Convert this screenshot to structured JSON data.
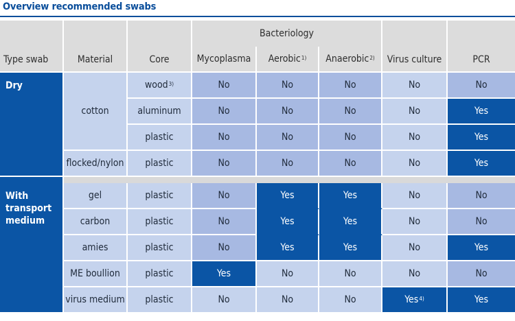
{
  "title": "Overview recommended swabs",
  "header": {
    "type_swab": "Type swab",
    "material": "Material",
    "core": "Core",
    "bacteriology": "Bacteriology",
    "mycoplasma": "Mycoplasma",
    "aerobic": "Aerobic",
    "aerobic_note": "1)",
    "anaerobic": "Anaerobic",
    "anaerobic_note": "2)",
    "virus_culture": "Virus culture",
    "pcr": "PCR"
  },
  "groups": {
    "dry": "Dry",
    "transport": "With transport medium"
  },
  "dry": {
    "material_cotton": "cotton",
    "material_flocked": "flocked/nylon",
    "rows": [
      {
        "core": "wood",
        "core_note": "3)",
        "mycoplasma": "No",
        "aerobic": "No",
        "anaerobic": "No",
        "virus": "No",
        "pcr": "No"
      },
      {
        "core": "aluminum",
        "mycoplasma": "No",
        "aerobic": "No",
        "anaerobic": "No",
        "virus": "No",
        "pcr": "Yes"
      },
      {
        "core": "plastic",
        "mycoplasma": "No",
        "aerobic": "No",
        "anaerobic": "No",
        "virus": "No",
        "pcr": "Yes"
      },
      {
        "core": "plastic",
        "mycoplasma": "No",
        "aerobic": "No",
        "anaerobic": "No",
        "virus": "No",
        "pcr": "Yes"
      }
    ]
  },
  "transport": {
    "rows": [
      {
        "material": "gel",
        "core": "plastic",
        "mycoplasma": "No",
        "aerobic": "Yes",
        "anaerobic": "Yes",
        "virus": "No",
        "pcr": "No"
      },
      {
        "material": "carbon",
        "core": "plastic",
        "mycoplasma": "No",
        "aerobic": "Yes",
        "anaerobic": "Yes",
        "virus": "No",
        "pcr": "No"
      },
      {
        "material": "amies",
        "core": "plastic",
        "mycoplasma": "No",
        "aerobic": "Yes",
        "anaerobic": "Yes",
        "virus": "No",
        "pcr": "Yes"
      },
      {
        "material": "ME boullion",
        "core": "plastic",
        "mycoplasma": "Yes",
        "aerobic": "No",
        "anaerobic": "No",
        "virus": "No",
        "pcr": "No"
      },
      {
        "material": "virus medium",
        "core": "plastic",
        "mycoplasma": "No",
        "aerobic": "No",
        "anaerobic": "No",
        "virus": "Yes",
        "virus_note": "4)",
        "pcr": "Yes"
      }
    ]
  },
  "colors": {
    "title": "#0a4e9b",
    "header_bg": "#dcdcdc",
    "label_bg": "#c5d3ed",
    "no_bg": "#a7b9e2",
    "yes_bg": "#0b55a5"
  }
}
